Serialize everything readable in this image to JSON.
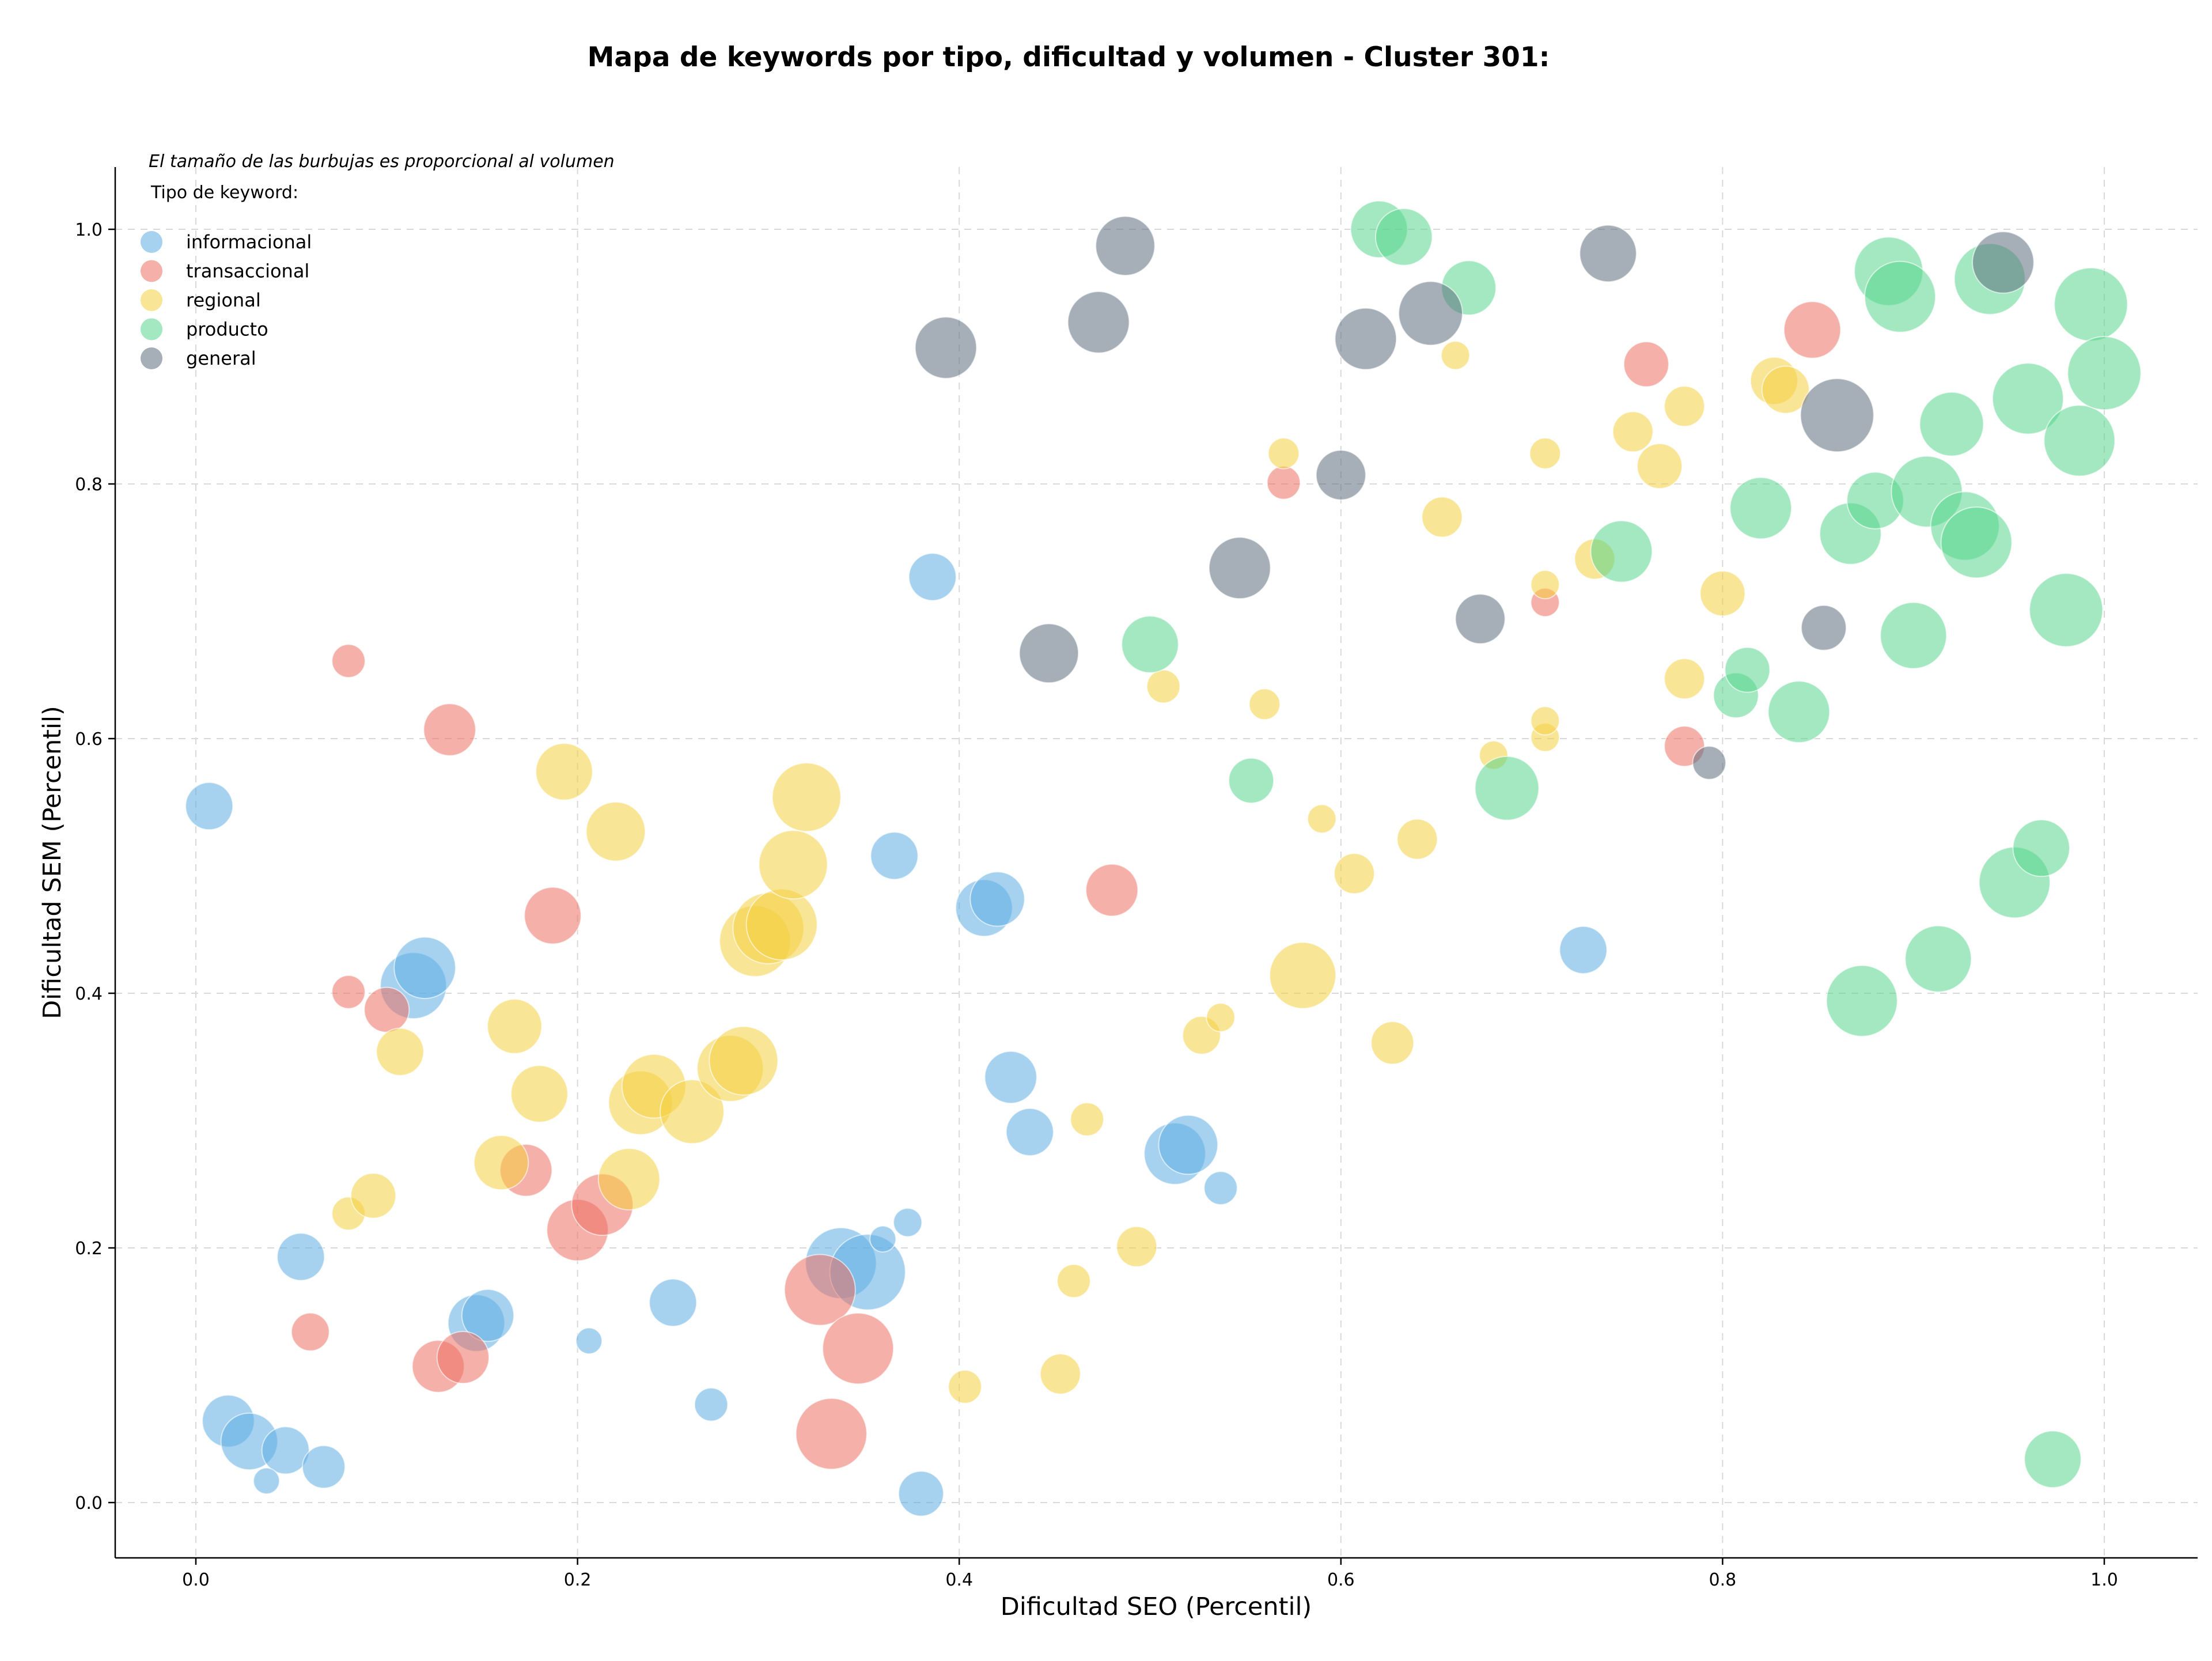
{
  "chart_data": {
    "type": "scatter",
    "title": "Mapa de keywords por tipo, dificultad y volumen - Cluster 301:",
    "xlabel": "Dificultad SEO (Percentil)",
    "ylabel": "Dificultad SEM (Percentil)",
    "note": "El tamaño de las burbujas es proporcional al volumen",
    "legend_title": "Tipo de keyword:",
    "legend_position": "top-left",
    "grid": true,
    "xlim": [
      -0.04,
      1.05
    ],
    "ylim": [
      -0.04,
      1.05
    ],
    "xticks": [
      0.0,
      0.2,
      0.4,
      0.6,
      0.8,
      1.0
    ],
    "yticks": [
      0.0,
      0.2,
      0.4,
      0.6,
      0.8,
      1.0
    ],
    "xtick_labels": [
      "0.0",
      "0.2",
      "0.4",
      "0.6",
      "0.8",
      "1.0"
    ],
    "ytick_labels": [
      "0.0",
      "0.2",
      "0.4",
      "0.6",
      "0.8",
      "1.0"
    ],
    "series": [
      {
        "name": "informacional",
        "color": "#5DADE2",
        "points": [
          [
            0.007,
            0.547,
            1.0
          ],
          [
            0.055,
            0.193,
            1.0
          ],
          [
            0.017,
            0.064,
            1.1
          ],
          [
            0.028,
            0.048,
            1.2
          ],
          [
            0.047,
            0.041,
            1.0
          ],
          [
            0.067,
            0.028,
            0.9
          ],
          [
            0.037,
            0.017,
            0.55
          ],
          [
            0.114,
            0.406,
            1.4
          ],
          [
            0.12,
            0.42,
            1.3
          ],
          [
            0.147,
            0.141,
            1.2
          ],
          [
            0.153,
            0.147,
            1.1
          ],
          [
            0.206,
            0.127,
            0.55
          ],
          [
            0.25,
            0.157,
            1.0
          ],
          [
            0.27,
            0.077,
            0.7
          ],
          [
            0.338,
            0.188,
            1.5
          ],
          [
            0.352,
            0.181,
            1.6
          ],
          [
            0.36,
            0.207,
            0.55
          ],
          [
            0.373,
            0.22,
            0.6
          ],
          [
            0.366,
            0.508,
            1.0
          ],
          [
            0.38,
            0.007,
            0.95
          ],
          [
            0.386,
            0.727,
            1.0
          ],
          [
            0.413,
            0.467,
            1.2
          ],
          [
            0.42,
            0.474,
            1.15
          ],
          [
            0.427,
            0.334,
            1.1
          ],
          [
            0.437,
            0.291,
            1.0
          ],
          [
            0.513,
            0.274,
            1.3
          ],
          [
            0.52,
            0.281,
            1.25
          ],
          [
            0.537,
            0.247,
            0.7
          ],
          [
            0.727,
            0.434,
            1.0
          ]
        ]
      },
      {
        "name": "transaccional",
        "color": "#EC7063",
        "points": [
          [
            0.06,
            0.134,
            0.8
          ],
          [
            0.08,
            0.661,
            0.7
          ],
          [
            0.08,
            0.401,
            0.7
          ],
          [
            0.1,
            0.387,
            0.95
          ],
          [
            0.133,
            0.607,
            1.1
          ],
          [
            0.127,
            0.107,
            1.1
          ],
          [
            0.14,
            0.114,
            1.1
          ],
          [
            0.173,
            0.261,
            1.1
          ],
          [
            0.187,
            0.461,
            1.2
          ],
          [
            0.2,
            0.214,
            1.3
          ],
          [
            0.213,
            0.234,
            1.3
          ],
          [
            0.327,
            0.167,
            1.5
          ],
          [
            0.333,
            0.054,
            1.5
          ],
          [
            0.347,
            0.121,
            1.5
          ],
          [
            0.48,
            0.481,
            1.1
          ],
          [
            0.57,
            0.801,
            0.7
          ],
          [
            0.707,
            0.707,
            0.6
          ],
          [
            0.76,
            0.894,
            0.95
          ],
          [
            0.78,
            0.594,
            0.85
          ],
          [
            0.847,
            0.921,
            1.2
          ]
        ]
      },
      {
        "name": "regional",
        "color": "#F4D03F",
        "points": [
          [
            0.08,
            0.227,
            0.7
          ],
          [
            0.093,
            0.241,
            0.95
          ],
          [
            0.107,
            0.354,
            1.0
          ],
          [
            0.16,
            0.267,
            1.15
          ],
          [
            0.167,
            0.374,
            1.15
          ],
          [
            0.18,
            0.321,
            1.2
          ],
          [
            0.193,
            0.574,
            1.2
          ],
          [
            0.22,
            0.527,
            1.25
          ],
          [
            0.227,
            0.254,
            1.3
          ],
          [
            0.233,
            0.314,
            1.35
          ],
          [
            0.24,
            0.327,
            1.35
          ],
          [
            0.26,
            0.307,
            1.35
          ],
          [
            0.28,
            0.341,
            1.4
          ],
          [
            0.287,
            0.347,
            1.45
          ],
          [
            0.293,
            0.441,
            1.5
          ],
          [
            0.3,
            0.451,
            1.5
          ],
          [
            0.307,
            0.454,
            1.5
          ],
          [
            0.313,
            0.501,
            1.45
          ],
          [
            0.32,
            0.554,
            1.45
          ],
          [
            0.403,
            0.091,
            0.7
          ],
          [
            0.453,
            0.101,
            0.85
          ],
          [
            0.46,
            0.174,
            0.7
          ],
          [
            0.467,
            0.301,
            0.7
          ],
          [
            0.493,
            0.201,
            0.85
          ],
          [
            0.507,
            0.641,
            0.7
          ],
          [
            0.527,
            0.367,
            0.8
          ],
          [
            0.537,
            0.381,
            0.6
          ],
          [
            0.56,
            0.627,
            0.65
          ],
          [
            0.57,
            0.824,
            0.65
          ],
          [
            0.58,
            0.414,
            1.4
          ],
          [
            0.59,
            0.537,
            0.6
          ],
          [
            0.607,
            0.494,
            0.85
          ],
          [
            0.627,
            0.361,
            0.9
          ],
          [
            0.64,
            0.521,
            0.85
          ],
          [
            0.653,
            0.774,
            0.85
          ],
          [
            0.66,
            0.901,
            0.6
          ],
          [
            0.68,
            0.587,
            0.6
          ],
          [
            0.707,
            0.601,
            0.6
          ],
          [
            0.707,
            0.614,
            0.6
          ],
          [
            0.707,
            0.721,
            0.6
          ],
          [
            0.707,
            0.824,
            0.65
          ],
          [
            0.733,
            0.741,
            0.85
          ],
          [
            0.753,
            0.841,
            0.85
          ],
          [
            0.767,
            0.814,
            0.95
          ],
          [
            0.78,
            0.647,
            0.85
          ],
          [
            0.78,
            0.861,
            0.85
          ],
          [
            0.8,
            0.714,
            0.95
          ],
          [
            0.827,
            0.881,
            1.0
          ],
          [
            0.833,
            0.874,
            1.0
          ]
        ]
      },
      {
        "name": "producto",
        "color": "#58D68D",
        "points": [
          [
            0.5,
            0.674,
            1.2
          ],
          [
            0.553,
            0.567,
            0.95
          ],
          [
            0.62,
            1.0,
            1.2
          ],
          [
            0.633,
            0.994,
            1.2
          ],
          [
            0.667,
            0.954,
            1.15
          ],
          [
            0.687,
            0.561,
            1.35
          ],
          [
            0.747,
            0.747,
            1.3
          ],
          [
            0.807,
            0.634,
            0.95
          ],
          [
            0.813,
            0.654,
            0.95
          ],
          [
            0.82,
            0.781,
            1.3
          ],
          [
            0.84,
            0.621,
            1.3
          ],
          [
            0.867,
            0.761,
            1.3
          ],
          [
            0.873,
            0.394,
            1.5
          ],
          [
            0.88,
            0.787,
            1.2
          ],
          [
            0.887,
            0.967,
            1.45
          ],
          [
            0.893,
            0.947,
            1.5
          ],
          [
            0.9,
            0.681,
            1.4
          ],
          [
            0.907,
            0.794,
            1.5
          ],
          [
            0.913,
            0.427,
            1.4
          ],
          [
            0.92,
            0.847,
            1.35
          ],
          [
            0.927,
            0.767,
            1.45
          ],
          [
            0.933,
            0.754,
            1.5
          ],
          [
            0.94,
            0.961,
            1.5
          ],
          [
            0.953,
            0.487,
            1.5
          ],
          [
            0.96,
            0.867,
            1.5
          ],
          [
            0.967,
            0.514,
            1.2
          ],
          [
            0.973,
            0.034,
            1.2
          ],
          [
            0.98,
            0.701,
            1.55
          ],
          [
            0.987,
            0.834,
            1.5
          ],
          [
            0.993,
            0.941,
            1.55
          ],
          [
            1.0,
            0.887,
            1.55
          ]
        ]
      },
      {
        "name": "general",
        "color": "#5D6D7E",
        "points": [
          [
            0.393,
            0.907,
            1.3
          ],
          [
            0.447,
            0.667,
            1.25
          ],
          [
            0.473,
            0.927,
            1.3
          ],
          [
            0.487,
            0.987,
            1.25
          ],
          [
            0.547,
            0.734,
            1.3
          ],
          [
            0.6,
            0.807,
            1.05
          ],
          [
            0.613,
            0.914,
            1.3
          ],
          [
            0.647,
            0.934,
            1.35
          ],
          [
            0.673,
            0.694,
            1.05
          ],
          [
            0.74,
            0.981,
            1.2
          ],
          [
            0.793,
            0.581,
            0.7
          ],
          [
            0.853,
            0.687,
            0.95
          ],
          [
            0.86,
            0.854,
            1.55
          ],
          [
            0.947,
            0.974,
            1.3
          ]
        ]
      }
    ]
  }
}
